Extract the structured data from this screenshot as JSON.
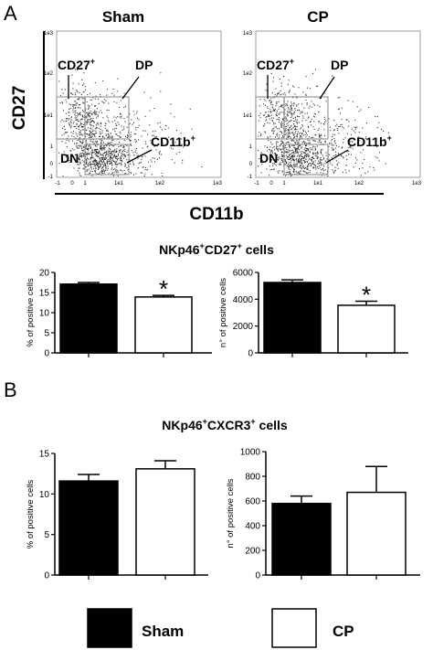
{
  "panel_a": {
    "letter": "A",
    "flow": {
      "y_axis_label": "CD27",
      "x_axis_label": "CD11b",
      "y_tick_labels": [
        "1e3",
        "1e2",
        "1e1",
        "1",
        "0",
        "-1"
      ],
      "x_tick_labels": [
        "-1",
        "0",
        "1",
        "1e1",
        "1e2",
        "1e3"
      ],
      "plots": [
        {
          "title": "Sham",
          "gates": {
            "cd27": "CD27",
            "cd27_sup": "+",
            "dp": "DP",
            "dn": "DN",
            "cd11b": "CD11b",
            "cd11b_sup": "+"
          }
        },
        {
          "title": "CP",
          "gates": {
            "cd27": "CD27",
            "cd27_sup": "+",
            "dp": "DP",
            "dn": "DN",
            "cd11b": "CD11b",
            "cd11b_sup": "+"
          }
        }
      ]
    },
    "subtitle": {
      "main": "NKp46",
      "sup1": "+",
      "mid": "CD27",
      "sup2": "+",
      "tail": " cells"
    }
  },
  "panel_b": {
    "letter": "B",
    "subtitle": {
      "main": "NKp46",
      "sup1": "+",
      "mid": "CXCR3",
      "sup2": "+",
      "tail": " cells"
    }
  },
  "legend": [
    {
      "label": "Sham",
      "color": "#000000"
    },
    {
      "label": "CP",
      "color": "#ffffff"
    }
  ],
  "colors": {
    "sham": "#000000",
    "cp": "#ffffff",
    "gate": "#9a9a9a",
    "dots": "#333333"
  },
  "chart_data": [
    {
      "type": "bar",
      "id": "a-percent",
      "categories": [
        "Sham",
        "CP"
      ],
      "values": [
        17.1,
        13.9
      ],
      "errors": [
        0.4,
        0.4
      ],
      "ylabel": "% of positive cells",
      "ylim": [
        0,
        20
      ],
      "yticks": [
        0,
        5,
        10,
        15,
        20
      ],
      "significance": [
        "",
        "*"
      ]
    },
    {
      "type": "bar",
      "id": "a-number",
      "categories": [
        "Sham",
        "CP"
      ],
      "values": [
        5250,
        3550
      ],
      "errors": [
        200,
        300
      ],
      "ylabel": "n° of positive cells",
      "ylim": [
        0,
        6000
      ],
      "yticks": [
        0,
        2000,
        4000,
        6000
      ],
      "significance": [
        "",
        "*"
      ]
    },
    {
      "type": "bar",
      "id": "b-percent",
      "categories": [
        "Sham",
        "CP"
      ],
      "values": [
        11.6,
        13.1
      ],
      "errors": [
        0.8,
        1.0
      ],
      "ylabel": "% of positive cells",
      "ylim": [
        0,
        15
      ],
      "yticks": [
        0,
        5,
        10,
        15
      ],
      "significance": [
        "",
        ""
      ]
    },
    {
      "type": "bar",
      "id": "b-number",
      "categories": [
        "Sham",
        "CP"
      ],
      "values": [
        580,
        670
      ],
      "errors": [
        60,
        210
      ],
      "ylabel": "n° of positive cells",
      "ylim": [
        0,
        1000
      ],
      "yticks": [
        0,
        200,
        400,
        600,
        800,
        1000
      ],
      "significance": [
        "",
        ""
      ]
    }
  ]
}
